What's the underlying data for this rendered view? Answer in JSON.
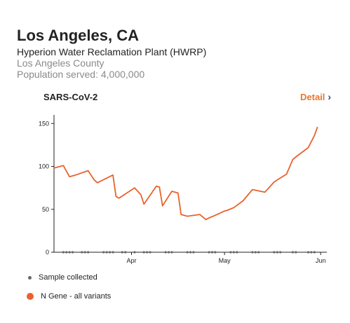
{
  "header": {
    "title": "Los Angeles, CA",
    "plant": "Hyperion Water Reclamation Plant (HWRP)",
    "county": "Los Angeles County",
    "population": "Population served: 4,000,000"
  },
  "card": {
    "title": "SARS-CoV-2",
    "detail_label": "Detail",
    "detail_icon": "chevron-right-icon"
  },
  "legend": {
    "sample_label": "Sample collected",
    "ngene_label": "N Gene - all variants"
  },
  "colors": {
    "line": "#e8622d",
    "accent": "#e8762d",
    "sample_dot": "#666666",
    "chevron": "#1f4e9b"
  },
  "chart_data": {
    "type": "line",
    "x_axis_ticks": [
      "Apr",
      "May",
      "Jun"
    ],
    "y_axis_ticks": [
      0,
      50,
      100,
      150
    ],
    "ylim": [
      0,
      160
    ],
    "xlim": [
      "2022-03-07",
      "2022-06-03"
    ],
    "grid": false,
    "series": [
      {
        "name": "N Gene - all variants",
        "x": [
          "2022-03-07",
          "2022-03-10",
          "2022-03-12",
          "2022-03-14",
          "2022-03-18",
          "2022-03-20",
          "2022-03-21",
          "2022-03-26",
          "2022-03-27",
          "2022-03-28",
          "2022-04-02",
          "2022-04-04",
          "2022-04-05",
          "2022-04-09",
          "2022-04-10",
          "2022-04-11",
          "2022-04-14",
          "2022-04-16",
          "2022-04-17",
          "2022-04-19",
          "2022-04-23",
          "2022-04-25",
          "2022-04-26",
          "2022-04-28",
          "2022-05-01",
          "2022-05-02",
          "2022-05-04",
          "2022-05-07",
          "2022-05-10",
          "2022-05-14",
          "2022-05-17",
          "2022-05-21",
          "2022-05-23",
          "2022-05-24",
          "2022-05-28",
          "2022-05-30",
          "2022-05-31"
        ],
        "y": [
          98,
          101,
          88,
          90,
          95,
          84,
          81,
          90,
          65,
          63,
          75,
          67,
          56,
          77,
          76,
          54,
          71,
          69,
          44,
          42,
          44,
          38,
          40,
          43,
          48,
          49,
          52,
          60,
          73,
          70,
          82,
          91,
          108,
          111,
          122,
          136,
          146
        ]
      }
    ],
    "samples_collected": [
      "2022-03-10",
      "2022-03-11",
      "2022-03-12",
      "2022-03-13",
      "2022-03-16",
      "2022-03-17",
      "2022-03-18",
      "2022-03-23",
      "2022-03-24",
      "2022-03-25",
      "2022-03-26",
      "2022-03-29",
      "2022-03-30",
      "2022-04-02",
      "2022-04-05",
      "2022-04-06",
      "2022-04-07",
      "2022-04-12",
      "2022-04-13",
      "2022-04-14",
      "2022-04-19",
      "2022-04-20",
      "2022-04-21",
      "2022-04-26",
      "2022-04-27",
      "2022-04-28",
      "2022-05-03",
      "2022-05-04",
      "2022-05-05",
      "2022-05-10",
      "2022-05-11",
      "2022-05-12",
      "2022-05-17",
      "2022-05-18",
      "2022-05-19",
      "2022-05-23",
      "2022-05-24",
      "2022-05-28",
      "2022-05-29",
      "2022-05-30"
    ]
  }
}
